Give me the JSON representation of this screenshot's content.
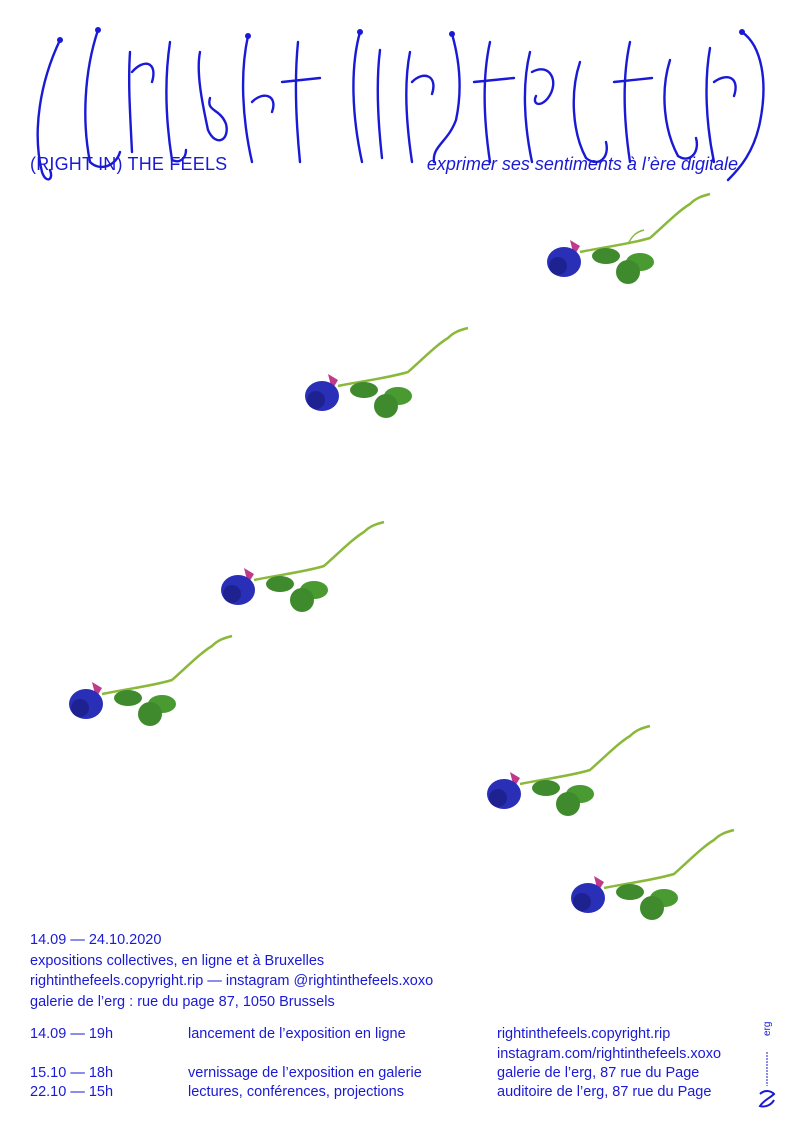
{
  "header": {
    "title_art_text": "(RIGHT IN) THE FEELS",
    "subtitle_left": "(RIGHT IN) THE FEELS",
    "subtitle_right": "exprimer ses sentiments à l’ère digitale"
  },
  "info": {
    "dates": "14.09 — 24.10.2020",
    "line2": "expositions collectives, en ligne et à Bruxelles",
    "line3": "rightinthefeels.copyright.rip — instagram @rightinthefeels.xoxo",
    "line4": "galerie de l’erg : rue du page 87, 1050 Brussels"
  },
  "schedule": [
    {
      "date": "14.09 — 19h",
      "event": "lancement de l’exposition en ligne",
      "place": "rightinthefeels.copyright.rip"
    },
    {
      "date": "",
      "event": "",
      "place": "instagram.com/rightinthefeels.xoxo"
    },
    {
      "date": "15.10 — 18h",
      "event": "vernissage de l’exposition en galerie",
      "place": "galerie de l’erg, 87 rue du Page"
    },
    {
      "date": "22.10 — 15h",
      "event": "lectures, conférences, projections",
      "place": "auditoire de l’erg, 87 rue du Page"
    }
  ],
  "logos": {
    "erg": "erg",
    "federation": "FÉDÉRATION WALLONIE-BRUXELLES"
  },
  "colors": {
    "ink": "#1a1ad6",
    "rose": "#2a2fb8",
    "leaf": "#3f8a2c",
    "stem": "#8ab83a",
    "sepal": "#c03a8a"
  }
}
